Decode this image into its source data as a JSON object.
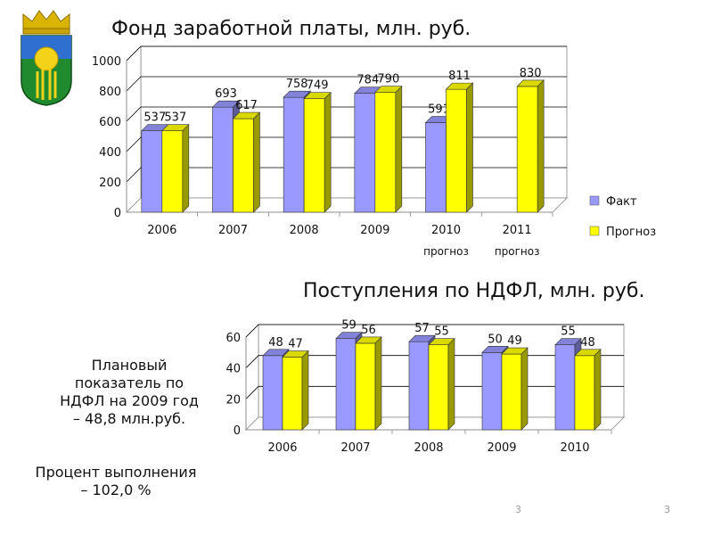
{
  "slide": {
    "page_number_left": "3",
    "page_number_right": "3"
  },
  "notes": {
    "plan_lines": [
      "Плановый",
      "показатель по",
      "НДФЛ на 2009 год",
      "– 48,8 млн.руб."
    ],
    "percent_lines": [
      "Процент выполнения",
      "– 102,0 %"
    ]
  },
  "colors": {
    "fact": "#9999ff",
    "forecast": "#ffff00"
  },
  "chart_data": [
    {
      "type": "bar",
      "title": "Фонд заработной платы, млн. руб.",
      "categories": [
        "2006",
        "2007",
        "2008",
        "2009",
        "2010",
        "2011"
      ],
      "category_sublabels": [
        "",
        "",
        "",
        "",
        "прогноз",
        "прогноз"
      ],
      "series": [
        {
          "name": "Факт",
          "values": [
            537,
            693,
            758,
            784,
            591,
            null
          ]
        },
        {
          "name": "Прогноз",
          "values": [
            537,
            617,
            749,
            790,
            811,
            830
          ]
        }
      ],
      "ylim": [
        0,
        1000
      ],
      "yticks": [
        0,
        200,
        400,
        600,
        800,
        1000
      ],
      "grid": true,
      "legend": "right"
    },
    {
      "type": "bar",
      "title": "Поступления по НДФЛ, млн. руб.",
      "categories": [
        "2006",
        "2007",
        "2008",
        "2009",
        "2010"
      ],
      "series": [
        {
          "name": "Факт",
          "values": [
            48,
            59,
            57,
            50,
            55
          ]
        },
        {
          "name": "Прогноз",
          "values": [
            47,
            56,
            55,
            49,
            48
          ]
        }
      ],
      "ylim": [
        0,
        60
      ],
      "yticks": [
        0,
        20,
        40,
        60
      ],
      "grid": true,
      "legend": "none"
    }
  ]
}
